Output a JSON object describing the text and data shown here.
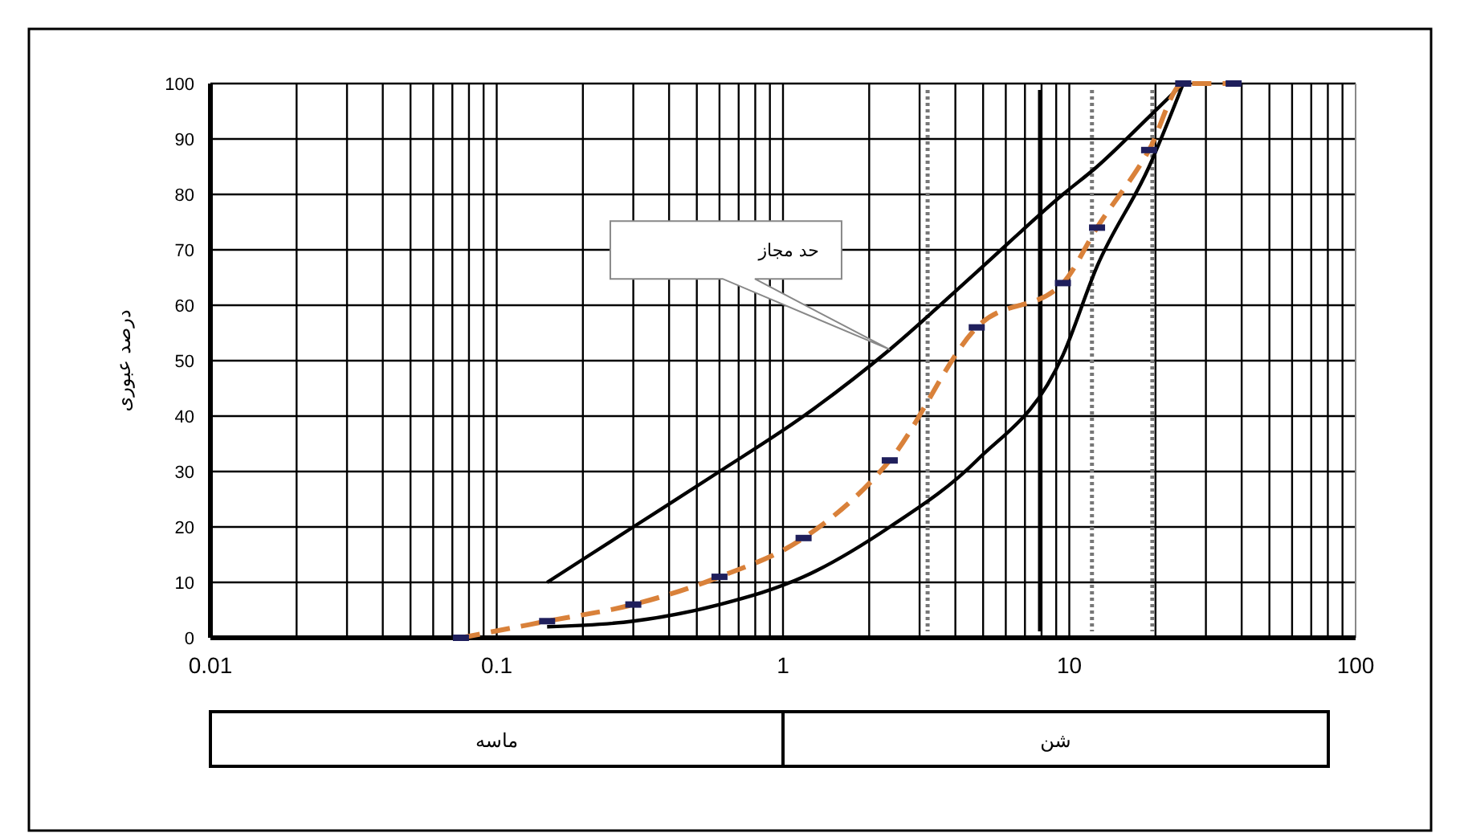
{
  "chart_data": {
    "type": "line",
    "ylabel": "درصد عبوری",
    "log": "x",
    "grid": true,
    "xlim": [
      0.01,
      100
    ],
    "xticks": [
      0.01,
      0.1,
      1,
      10,
      100
    ],
    "ylim": [
      0,
      100
    ],
    "yticks": [
      0,
      10,
      20,
      30,
      40,
      50,
      60,
      70,
      80,
      90,
      100
    ],
    "series": [
      {
        "color": "#000000",
        "x": [
          0.15,
          0.3,
          0.6,
          1.18,
          2.36,
          4.75,
          9.5,
          12.5,
          19,
          25
        ],
        "values": [
          10,
          20,
          30,
          40,
          52,
          66,
          80,
          85,
          94,
          100
        ],
        "marker": "none",
        "line_style": "solid"
      },
      {
        "color": "#000000",
        "x": [
          0.15,
          0.3,
          0.6,
          1.18,
          2.36,
          4.75,
          9.5,
          12.5,
          19,
          25
        ],
        "values": [
          2,
          3,
          6,
          11,
          20,
          32,
          51,
          67,
          85,
          100
        ],
        "marker": "none",
        "line_style": "solid"
      },
      {
        "color": "#d9813a",
        "x": [
          0.075,
          0.15,
          0.3,
          0.6,
          1.18,
          2.36,
          4.75,
          9.5,
          12.5,
          19,
          25,
          37.5
        ],
        "values": [
          0,
          3,
          6,
          11,
          18,
          32,
          56,
          64,
          74,
          88,
          100,
          100
        ],
        "marker": "none",
        "line_style": "dashed"
      },
      {
        "type": "scatter",
        "color": "#1f1f5c",
        "x": [
          0.075,
          0.15,
          0.3,
          0.6,
          1.18,
          2.36,
          4.75,
          9.5,
          12.5,
          19,
          25,
          37.5
        ],
        "values": [
          0,
          3,
          6,
          11,
          18,
          32,
          56,
          64,
          74,
          88,
          100,
          100
        ]
      }
    ],
    "ref_lines": [
      {
        "axis": "x",
        "value": 3.2,
        "line_style": "dotted",
        "color": "#777777"
      },
      {
        "axis": "x",
        "value": 7.9,
        "line_style": "solid",
        "color": "#000000"
      },
      {
        "axis": "x",
        "value": 12,
        "line_style": "dotted",
        "color": "#777777"
      },
      {
        "axis": "x",
        "value": 19.5,
        "line_style": "dotted",
        "color": "#777777"
      }
    ],
    "annotations": [
      "حد مجاز",
      "ماسه",
      "شن"
    ]
  }
}
